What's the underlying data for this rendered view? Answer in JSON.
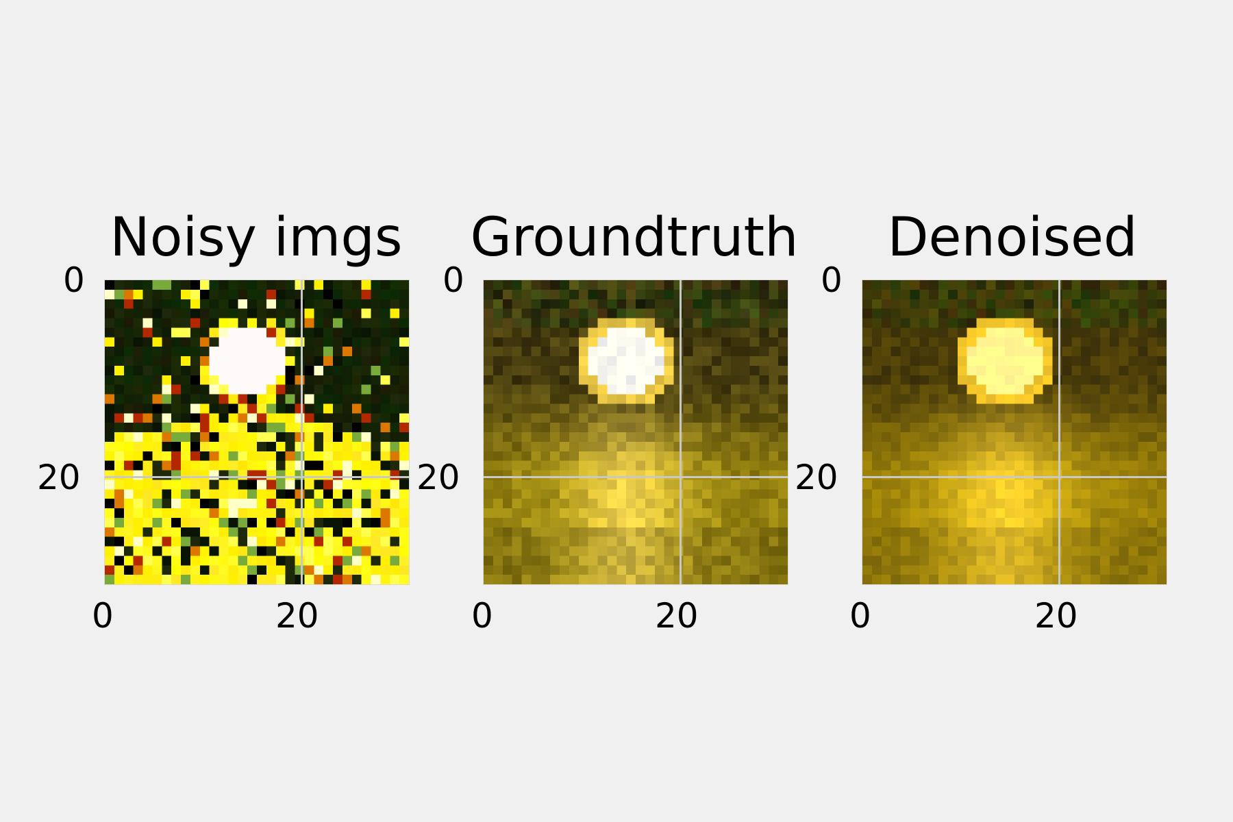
{
  "figure": {
    "background": "#f0f0f0",
    "axis_ticks": {
      "x": [
        "0",
        "20"
      ],
      "y": [
        "0",
        "20"
      ]
    },
    "grid": true,
    "image_size": [
      32,
      32
    ]
  },
  "panels": [
    {
      "title": "Noisy imgs",
      "kind": "noisy"
    },
    {
      "title": "Groundtruth",
      "kind": "groundtruth"
    },
    {
      "title": "Denoised",
      "kind": "denoised"
    }
  ]
}
